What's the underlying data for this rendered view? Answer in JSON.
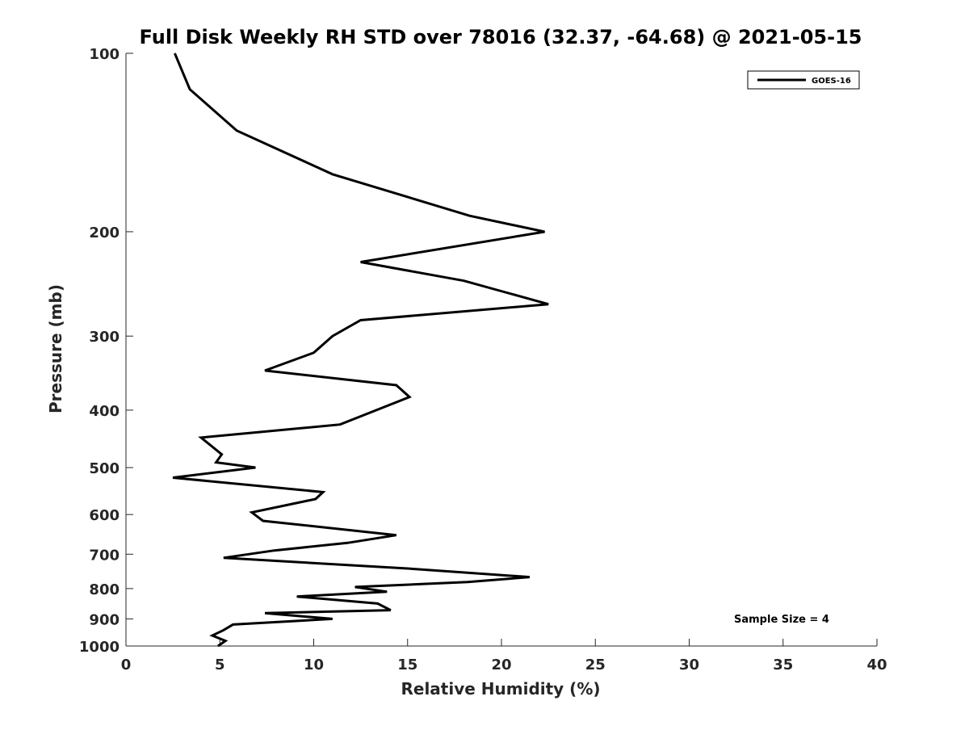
{
  "chart_data": {
    "type": "line",
    "title": "Full Disk Weekly RH STD over 78016 (32.37, -64.68) @ 2021-05-15",
    "xlabel": "Relative Humidity (%)",
    "ylabel": "Pressure (mb)",
    "xlim": [
      0,
      40
    ],
    "ylim": [
      100,
      1000
    ],
    "yscale": "log",
    "y_reversed": true,
    "grid": false,
    "legend_position": "top-right",
    "x_ticks": [
      0,
      5,
      10,
      15,
      20,
      25,
      30,
      35,
      40
    ],
    "y_ticks": [
      100,
      200,
      300,
      400,
      500,
      600,
      700,
      800,
      900,
      1000
    ],
    "annotation": "Sample Size = 4",
    "series": [
      {
        "name": "GOES-16",
        "color": "#000000",
        "x": [
          2.6,
          3.4,
          5.9,
          11.0,
          18.3,
          22.3,
          12.5,
          18.0,
          22.5,
          12.5,
          11.0,
          10.0,
          7.4,
          14.4,
          15.1,
          11.4,
          4.0,
          5.1,
          4.8,
          6.9,
          2.5,
          10.5,
          10.1,
          6.7,
          7.3,
          14.4,
          11.8,
          7.9,
          5.2,
          15.0,
          21.5,
          18.2,
          12.2,
          13.9,
          9.1,
          13.4,
          14.1,
          7.4,
          11.0,
          5.7,
          5.2,
          4.6,
          5.3,
          4.9
        ],
        "y": [
          100,
          115,
          135,
          160,
          188,
          200,
          225,
          242,
          265,
          282,
          300,
          320,
          343,
          363,
          380,
          423,
          445,
          475,
          490,
          500,
          520,
          550,
          565,
          595,
          615,
          650,
          670,
          690,
          710,
          740,
          765,
          780,
          795,
          810,
          825,
          848,
          870,
          880,
          900,
          920,
          940,
          960,
          980,
          1000
        ]
      }
    ]
  }
}
